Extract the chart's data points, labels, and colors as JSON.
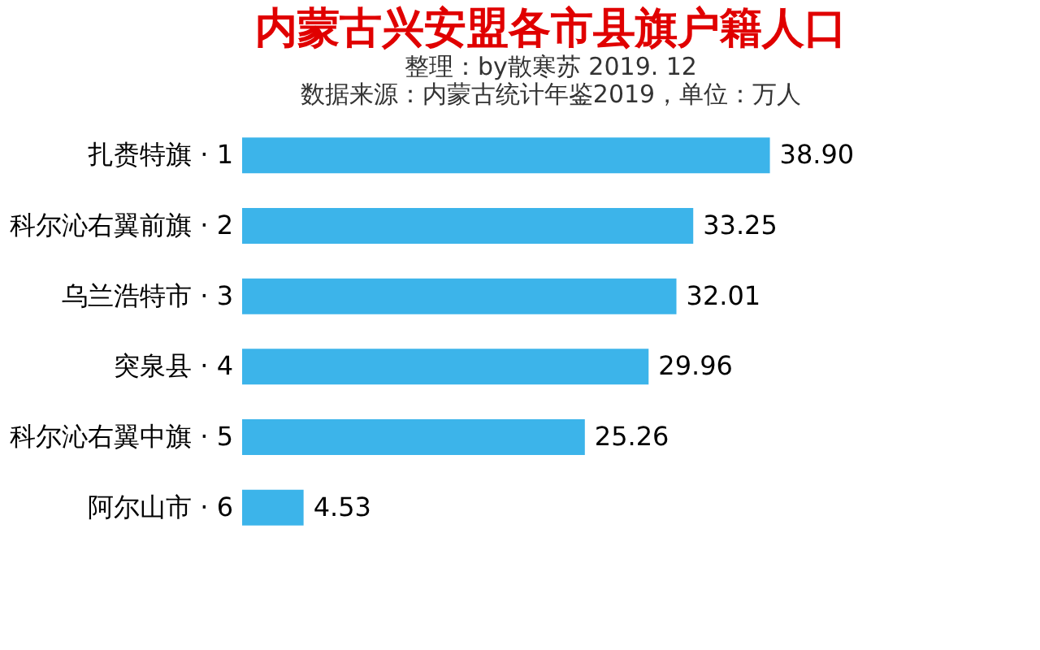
{
  "chart_data": {
    "type": "bar",
    "orientation": "horizontal",
    "title": "内蒙古兴安盟各市县旗户籍人口",
    "subtitle": "整理：by散寒苏 2019. 12",
    "annotations": [
      "数据来源：内蒙古统计年鉴2019，单位：万人"
    ],
    "categories": [
      "扎赉特旗 · 1",
      "科尔沁右翼前旗 · 2",
      "乌兰浩特市 · 3",
      "突泉县 · 4",
      "科尔沁右翼中旗 · 5",
      "阿尔山市 · 6"
    ],
    "values": [
      38.9,
      33.25,
      32.01,
      29.96,
      25.26,
      4.53
    ],
    "value_labels": [
      "38.90",
      "33.25",
      "32.01",
      "29.96",
      "25.26",
      "4.53"
    ],
    "color": "#3cb4ea",
    "grid": false
  }
}
